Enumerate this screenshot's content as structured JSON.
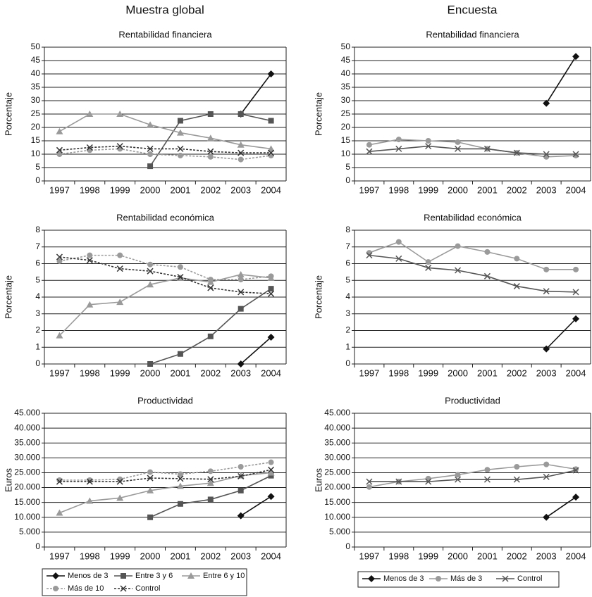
{
  "column_titles": [
    "Muestra global",
    "Encuesta"
  ],
  "legends": [
    {
      "entries": [
        {
          "name": "Menos de 3",
          "color": "#111111",
          "marker": "diamond",
          "dash": false
        },
        {
          "name": "Entre 3 y 6",
          "color": "#555555",
          "marker": "square",
          "dash": false
        },
        {
          "name": "Entre 6 y 10",
          "color": "#9a9a9a",
          "marker": "triangle",
          "dash": false
        },
        {
          "name": "Más de 10",
          "color": "#9a9a9a",
          "marker": "circle",
          "dash": true
        },
        {
          "name": "Control",
          "color": "#333333",
          "marker": "x",
          "dash": true
        }
      ]
    },
    {
      "entries": [
        {
          "name": "Menos de 3",
          "color": "#111111",
          "marker": "diamond",
          "dash": false
        },
        {
          "name": "Más de 3",
          "color": "#9a9a9a",
          "marker": "circle",
          "dash": false
        },
        {
          "name": "Control",
          "color": "#555555",
          "marker": "x",
          "dash": false
        }
      ]
    }
  ],
  "chart_data": [
    {
      "type": "line",
      "column": 0,
      "legend": 0,
      "title": "Rentabilidad financiera",
      "ylabel": "Porcentaje",
      "categories": [
        "1997",
        "1998",
        "1999",
        "2000",
        "2001",
        "2002",
        "2003",
        "2004"
      ],
      "ylim": [
        0,
        50
      ],
      "yticks": [
        0,
        5,
        10,
        15,
        20,
        25,
        30,
        35,
        40,
        45,
        50
      ],
      "series": [
        {
          "values": [
            null,
            null,
            null,
            null,
            null,
            null,
            25,
            40
          ]
        },
        {
          "values": [
            null,
            null,
            null,
            5.5,
            22.5,
            25,
            25,
            22.5
          ]
        },
        {
          "values": [
            18.5,
            25,
            25,
            21,
            18,
            16,
            13.5,
            12
          ]
        },
        {
          "values": [
            10,
            11.5,
            12,
            10,
            9.5,
            9,
            8,
            9.5
          ]
        },
        {
          "values": [
            11.5,
            12.5,
            13,
            12,
            12,
            11,
            10.5,
            10.5
          ]
        }
      ]
    },
    {
      "type": "line",
      "column": 1,
      "legend": 1,
      "title": "Rentabilidad financiera",
      "ylabel": "Porcentaje",
      "categories": [
        "1997",
        "1998",
        "1999",
        "2000",
        "2001",
        "2002",
        "2003",
        "2004"
      ],
      "ylim": [
        0,
        50
      ],
      "yticks": [
        0,
        5,
        10,
        15,
        20,
        25,
        30,
        35,
        40,
        45,
        50
      ],
      "series": [
        {
          "values": [
            null,
            null,
            null,
            null,
            null,
            null,
            29,
            46.5
          ]
        },
        {
          "values": [
            13.5,
            15.5,
            15,
            14.5,
            12,
            10.5,
            9,
            9.5
          ]
        },
        {
          "values": [
            11,
            12,
            13,
            12,
            12,
            10.5,
            10,
            10
          ]
        }
      ]
    },
    {
      "type": "line",
      "column": 0,
      "legend": 0,
      "title": "Rentabilidad económica",
      "ylabel": "Porcentaje",
      "categories": [
        "1997",
        "1998",
        "1999",
        "2000",
        "2001",
        "2002",
        "2003",
        "2004"
      ],
      "ylim": [
        0,
        8
      ],
      "yticks": [
        0,
        1,
        2,
        3,
        4,
        5,
        6,
        7,
        8
      ],
      "series": [
        {
          "values": [
            null,
            null,
            null,
            null,
            null,
            null,
            0,
            1.6
          ]
        },
        {
          "values": [
            null,
            null,
            null,
            0,
            0.6,
            1.65,
            3.3,
            4.5
          ]
        },
        {
          "values": [
            1.7,
            3.55,
            3.7,
            4.75,
            5.15,
            4.9,
            5.35,
            5.15
          ]
        },
        {
          "values": [
            6.15,
            6.5,
            6.5,
            5.95,
            5.8,
            5.05,
            5.05,
            5.25
          ]
        },
        {
          "values": [
            6.4,
            6.2,
            5.7,
            5.55,
            5.2,
            4.55,
            4.3,
            4.2
          ]
        }
      ]
    },
    {
      "type": "line",
      "column": 1,
      "legend": 1,
      "title": "Rentabilidad económica",
      "ylabel": "Porcentaje",
      "categories": [
        "1997",
        "1998",
        "1999",
        "2000",
        "2001",
        "2002",
        "2003",
        "2004"
      ],
      "ylim": [
        0,
        8
      ],
      "yticks": [
        0,
        1,
        2,
        3,
        4,
        5,
        6,
        7,
        8
      ],
      "series": [
        {
          "values": [
            null,
            null,
            null,
            null,
            null,
            null,
            0.9,
            2.7
          ]
        },
        {
          "values": [
            6.65,
            7.3,
            6.1,
            7.05,
            6.7,
            6.3,
            5.65,
            5.65
          ]
        },
        {
          "values": [
            6.5,
            6.3,
            5.75,
            5.6,
            5.25,
            4.65,
            4.35,
            4.3
          ]
        }
      ]
    },
    {
      "type": "line",
      "column": 0,
      "legend": 0,
      "title": "Productividad",
      "ylabel": "Euros",
      "categories": [
        "1997",
        "1998",
        "1999",
        "2000",
        "2001",
        "2002",
        "2003",
        "2004"
      ],
      "ylim": [
        0,
        45000
      ],
      "yticks": [
        0,
        {
          "value": 5000,
          "label": "5.000"
        },
        {
          "value": 10000,
          "label": "10.000"
        },
        {
          "value": 15000,
          "label": "15.000"
        },
        {
          "value": 20000,
          "label": "20.000"
        },
        {
          "value": 25000,
          "label": "25.000"
        },
        {
          "value": 30000,
          "label": "30.000"
        },
        {
          "value": 35000,
          "label": "35.000"
        },
        {
          "value": 40000,
          "label": "40.000"
        },
        {
          "value": 45000,
          "label": "45.000"
        }
      ],
      "series": [
        {
          "values": [
            null,
            null,
            null,
            null,
            null,
            null,
            10500,
            17000
          ]
        },
        {
          "values": [
            null,
            null,
            null,
            10000,
            14500,
            16000,
            19000,
            24000
          ]
        },
        {
          "values": [
            11500,
            15500,
            16500,
            19000,
            20500,
            21500,
            24000,
            25000
          ]
        },
        {
          "values": [
            22500,
            22500,
            22800,
            25200,
            24500,
            25500,
            27000,
            28500
          ]
        },
        {
          "values": [
            22000,
            22000,
            22000,
            23200,
            23000,
            22800,
            23800,
            26000
          ]
        }
      ]
    },
    {
      "type": "line",
      "column": 1,
      "legend": 1,
      "title": "Productividad",
      "ylabel": "Euros",
      "categories": [
        "1997",
        "1998",
        "1999",
        "2000",
        "2001",
        "2002",
        "2003",
        "2004"
      ],
      "ylim": [
        0,
        45000
      ],
      "yticks": [
        0,
        {
          "value": 5000,
          "label": "5.000"
        },
        {
          "value": 10000,
          "label": "10.000"
        },
        {
          "value": 15000,
          "label": "15.000"
        },
        {
          "value": 20000,
          "label": "20.000"
        },
        {
          "value": 25000,
          "label": "25.000"
        },
        {
          "value": 30000,
          "label": "30.000"
        },
        {
          "value": 35000,
          "label": "35.000"
        },
        {
          "value": 40000,
          "label": "40.000"
        },
        {
          "value": 45000,
          "label": "45.000"
        }
      ],
      "series": [
        {
          "values": [
            null,
            null,
            null,
            null,
            null,
            null,
            10000,
            16800
          ]
        },
        {
          "values": [
            20200,
            22000,
            23000,
            24300,
            26000,
            27000,
            27800,
            26200
          ]
        },
        {
          "values": [
            22000,
            22000,
            22000,
            22700,
            22700,
            22700,
            23600,
            25800
          ]
        }
      ]
    }
  ]
}
